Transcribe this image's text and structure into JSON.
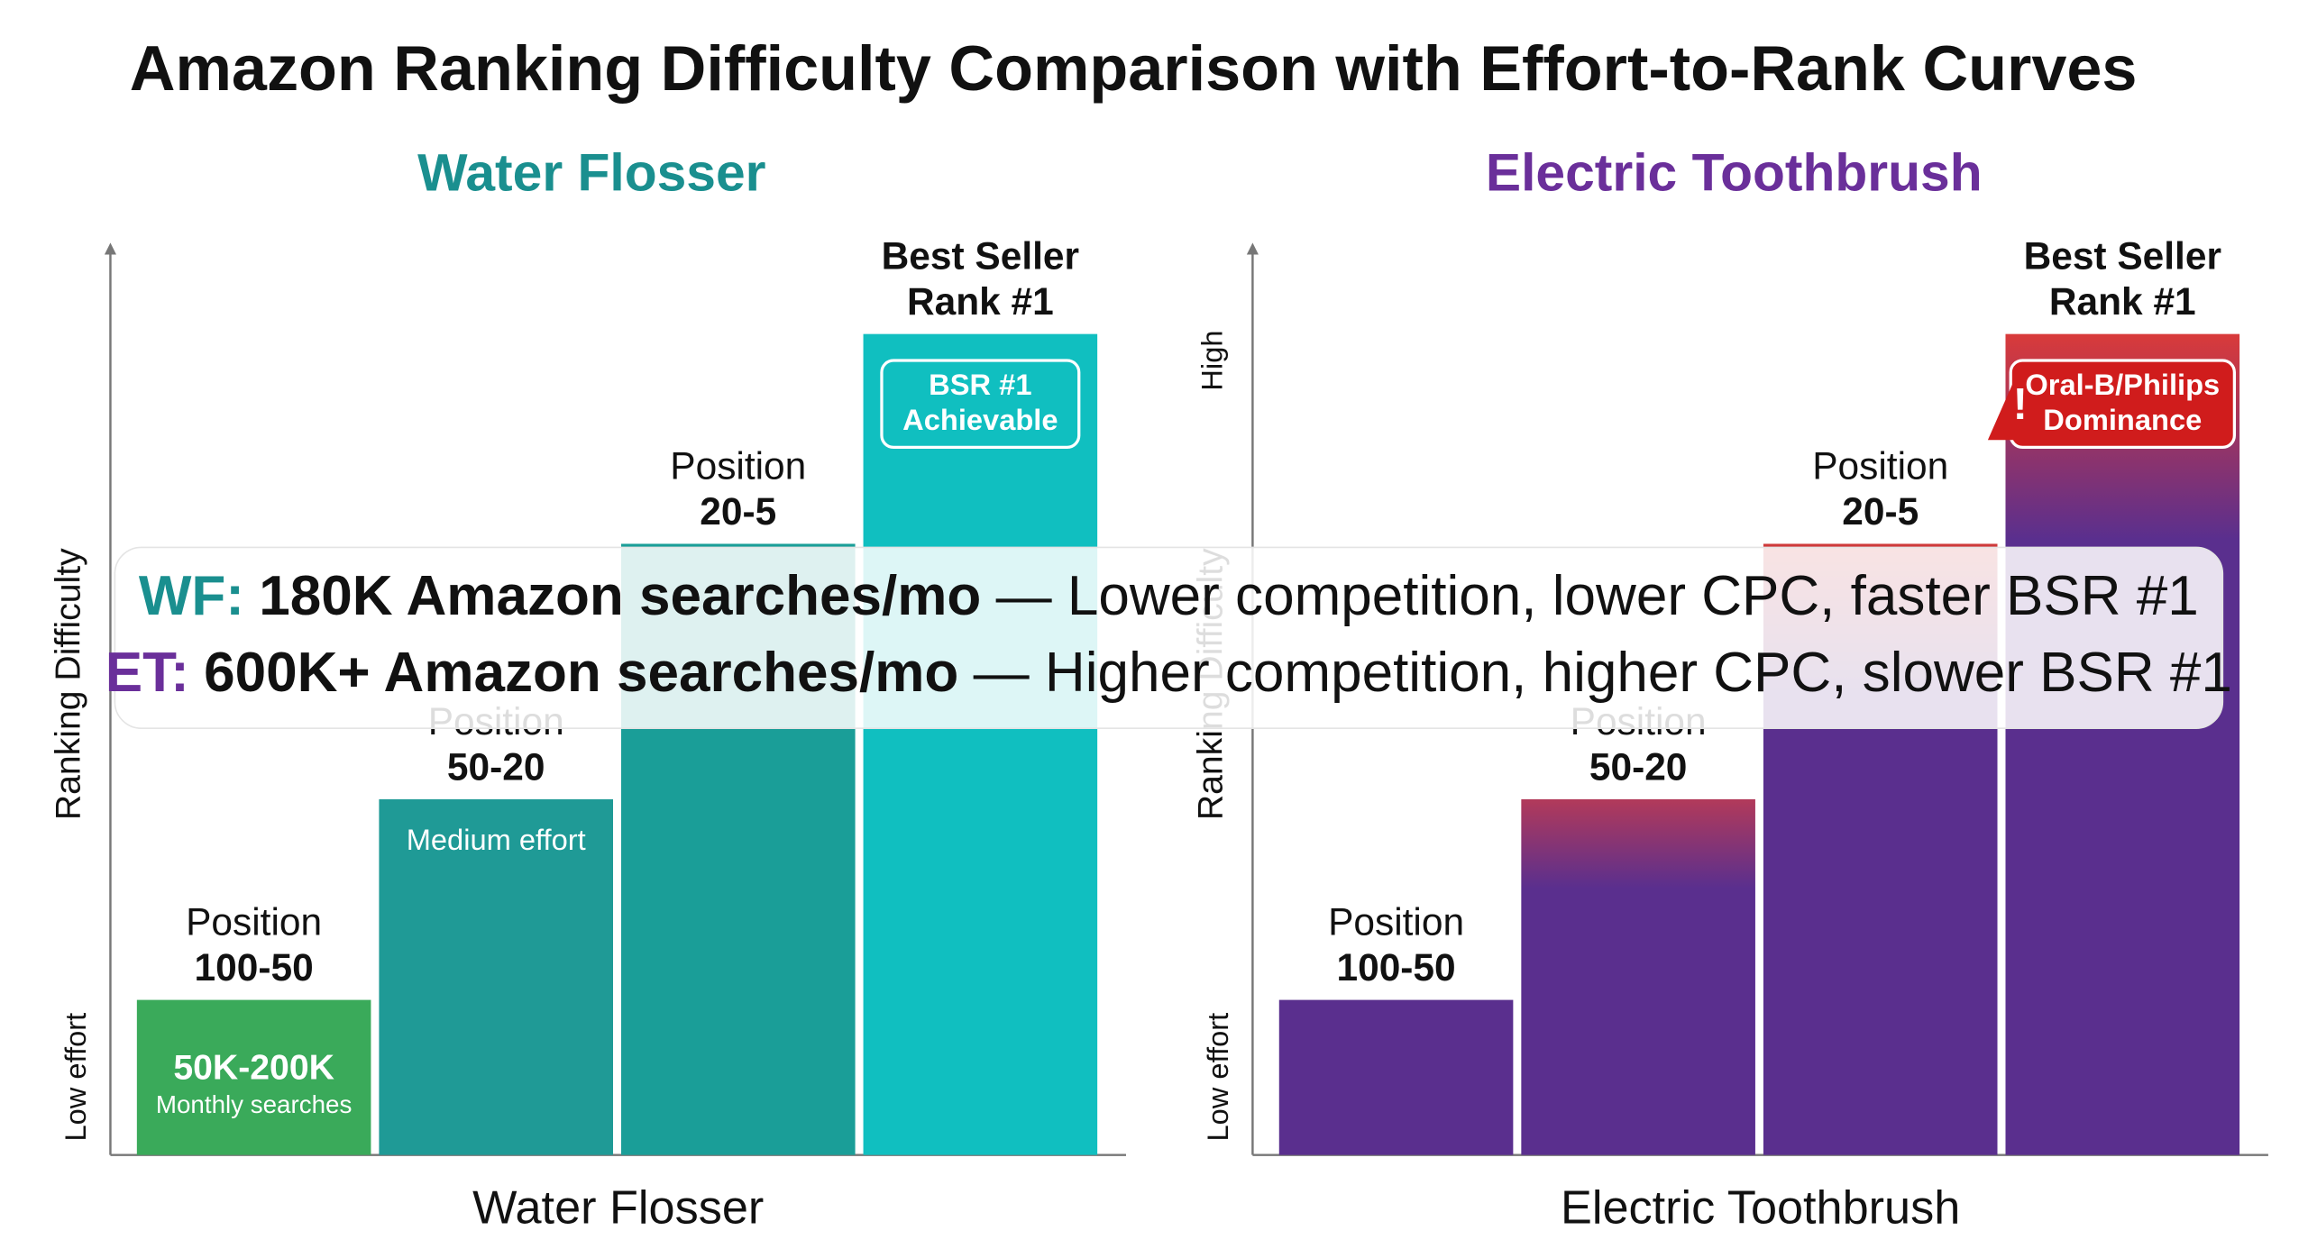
{
  "title": "Amazon Ranking Difficulty Comparison with Effort-to-Rank Curves",
  "chart_data": [
    {
      "type": "bar",
      "title": "Water Flosser",
      "title_color": "#1a8f8f",
      "xlabel": "Water Flosser",
      "ylabel": "Ranking Difficulty",
      "ylabel_low": "Low effort",
      "ylabel_high": null,
      "categories": [
        [
          "Position",
          "100-50"
        ],
        [
          "Position",
          "50-20"
        ],
        [
          "Position",
          "20-5"
        ],
        [
          "Best Seller",
          "Rank #1"
        ]
      ],
      "values": [
        17,
        39,
        67,
        90
      ],
      "ylim": [
        0,
        100
      ],
      "colors": [
        "#3aaa5a",
        "#1f9a96",
        "#1a9e98",
        "#10bfc0"
      ],
      "top_colors": [
        "#3aaa5a",
        "#1f9a96",
        "#1a9e98",
        "#10bfc0"
      ],
      "bar_notes": [
        [
          "50K-200K",
          "Monthly searches"
        ],
        [
          "Medium effort"
        ],
        null,
        [
          "BSR #1",
          "Achievable"
        ]
      ],
      "note_box_color": "#10bfc0"
    },
    {
      "type": "bar",
      "title": "Electric Toothbrush",
      "title_color": "#6a2f9a",
      "xlabel": "Electric Toothbrush",
      "ylabel": "Ranking Difficulty",
      "ylabel_low": "Low effort",
      "ylabel_high": "High",
      "categories": [
        [
          "Position",
          "100-50"
        ],
        [
          "Position",
          "50-20"
        ],
        [
          "Position",
          "20-5"
        ],
        [
          "Best Seller",
          "Rank #1"
        ]
      ],
      "values": [
        17,
        39,
        67,
        90
      ],
      "ylim": [
        0,
        100
      ],
      "colors": [
        "#5a2f8e",
        "#5a2f8e",
        "#5a2f8e",
        "#5a2f8e"
      ],
      "top_colors": [
        "#5a2f8e",
        "#b23a5a",
        "#d03a3a",
        "#d93a3a"
      ],
      "bar_notes": [
        null,
        null,
        null,
        [
          "Oral-B/Philips",
          "Dominance"
        ]
      ],
      "note_box_color": "#d01c1c"
    }
  ],
  "callout": {
    "lines": [
      {
        "tag": "WF:",
        "tag_color": "#1a8f8f",
        "bold": "180K Amazon searches/mo",
        "rest": "— Lower competition, lower CPC, faster BSR #1"
      },
      {
        "tag": "ET:",
        "tag_color": "#6a2f9a",
        "bold": "600K+ Amazon searches/mo",
        "rest": "— Higher competition, higher CPC, slower BSR #1"
      }
    ]
  }
}
